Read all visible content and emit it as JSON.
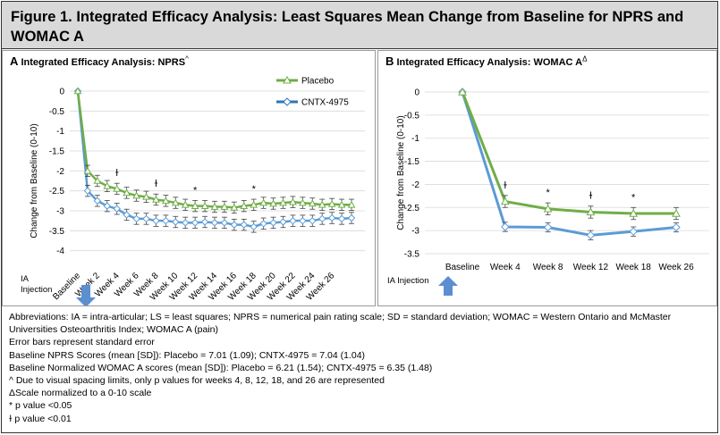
{
  "figure": {
    "title": "Figure 1.  Integrated Efficacy Analysis: Least Squares Mean Change from Baseline for NPRS and WOMAC A"
  },
  "panel_a": {
    "letter": "A",
    "title": "Integrated Efficacy Analysis: NPRS",
    "title_sup": "^",
    "ia_label_line1": "IA",
    "ia_label_line2": "Injection"
  },
  "panel_b": {
    "letter": "B",
    "title": "Integrated Efficacy Analysis: WOMAC A",
    "title_sup": "Δ",
    "ia_label": "IA Injection"
  },
  "colors": {
    "placebo": "#70ad47",
    "cntx": "#5b9bd5",
    "cntx_legend": "#2e75b6",
    "arrow": "#5b8fd0",
    "grid": "#d9d9d9"
  },
  "chart_data": [
    {
      "type": "line",
      "panel": "A",
      "ylabel": "Change from Baseline (0-10)",
      "ylim": [
        -4.5,
        0
      ],
      "yticks": [
        0,
        -0.5,
        -1,
        -1.5,
        -2,
        -2.5,
        -3,
        -3.5,
        -4
      ],
      "ytick_labels": [
        "0",
        "-0.5",
        "-1",
        "-1.5",
        "-2",
        "-2.5",
        "-3",
        "-3.5",
        "-4"
      ],
      "x_labels": [
        "Baseline",
        "Week 2",
        "Week 4",
        "Week 6",
        "Week 8",
        "Week 10",
        "Week 12",
        "Week 14",
        "Week 16",
        "Week 18",
        "Week 20",
        "Week 22",
        "Week 24",
        "Week 26"
      ],
      "legend_position": "top-right",
      "series": [
        {
          "name": "Placebo",
          "values": [
            0,
            -2.0,
            -2.25,
            -2.38,
            -2.45,
            -2.55,
            -2.62,
            -2.65,
            -2.72,
            -2.75,
            -2.8,
            -2.85,
            -2.88,
            -2.88,
            -2.9,
            -2.9,
            -2.92,
            -2.88,
            -2.85,
            -2.8,
            -2.82,
            -2.8,
            -2.78,
            -2.8,
            -2.82,
            -2.85,
            -2.83,
            -2.85,
            -2.85
          ],
          "error": 0.14
        },
        {
          "name": "CNTX-4975",
          "values": [
            0,
            -2.5,
            -2.75,
            -2.88,
            -2.95,
            -3.1,
            -3.2,
            -3.2,
            -3.25,
            -3.25,
            -3.28,
            -3.3,
            -3.3,
            -3.28,
            -3.3,
            -3.3,
            -3.35,
            -3.35,
            -3.4,
            -3.32,
            -3.3,
            -3.28,
            -3.25,
            -3.25,
            -3.25,
            -3.2,
            -3.18,
            -3.2,
            -3.18
          ],
          "error": 0.14
        }
      ],
      "annotations": [
        {
          "text": "ɫ",
          "x": "Week 4"
        },
        {
          "text": "ɫ",
          "x": "Week 8"
        },
        {
          "text": "*",
          "x": "Week 12"
        },
        {
          "text": "*",
          "x": "Week 18"
        }
      ]
    },
    {
      "type": "line",
      "panel": "B",
      "ylabel": "Change from Baseline (0-10)",
      "ylim": [
        -3.5,
        0
      ],
      "yticks": [
        0,
        -0.5,
        -1,
        -1.5,
        -2,
        -2.5,
        -3,
        -3.5
      ],
      "ytick_labels": [
        "0",
        "-0.5",
        "-1",
        "-1.5",
        "-2",
        "-2.5",
        "-3",
        "-3.5"
      ],
      "categories": [
        "Baseline",
        "Week 4",
        "Week 8",
        "Week 12",
        "Week 18",
        "Week 26"
      ],
      "series": [
        {
          "name": "Placebo",
          "values": [
            0,
            -2.37,
            -2.53,
            -2.6,
            -2.63,
            -2.63
          ],
          "error": 0.13
        },
        {
          "name": "CNTX-4975",
          "values": [
            0,
            -2.92,
            -2.93,
            -3.1,
            -3.02,
            -2.93
          ],
          "error": 0.1
        }
      ],
      "annotations": [
        {
          "text": "ɫ",
          "x": "Week 4"
        },
        {
          "text": "*",
          "x": "Week 8"
        },
        {
          "text": "ɫ",
          "x": "Week 12"
        },
        {
          "text": "*",
          "x": "Week 18"
        }
      ]
    }
  ],
  "notes": [
    "Abbreviations: IA = intra-articular; LS = least squares; NPRS = numerical pain rating scale; SD = standard deviation; WOMAC = Western Ontario and McMaster",
    "Universities Osteoarthritis Index; WOMAC A (pain)",
    "Error bars represent standard error",
    "Baseline NPRS Scores (mean [SD]): Placebo = 7.01 (1.09); CNTX-4975 = 7.04 (1.04)",
    "Baseline Normalized WOMAC A scores (mean [SD]): Placebo = 6.21 (1.54); CNTX-4975 = 6.35 (1.48)",
    "^ Due to visual spacing limits, only p values for weeks 4, 8, 12, 18, and 26 are represented",
    "ΔScale normalized to a 0-10 scale",
    "* p value <0.05",
    "ɫ p value <0.01"
  ]
}
